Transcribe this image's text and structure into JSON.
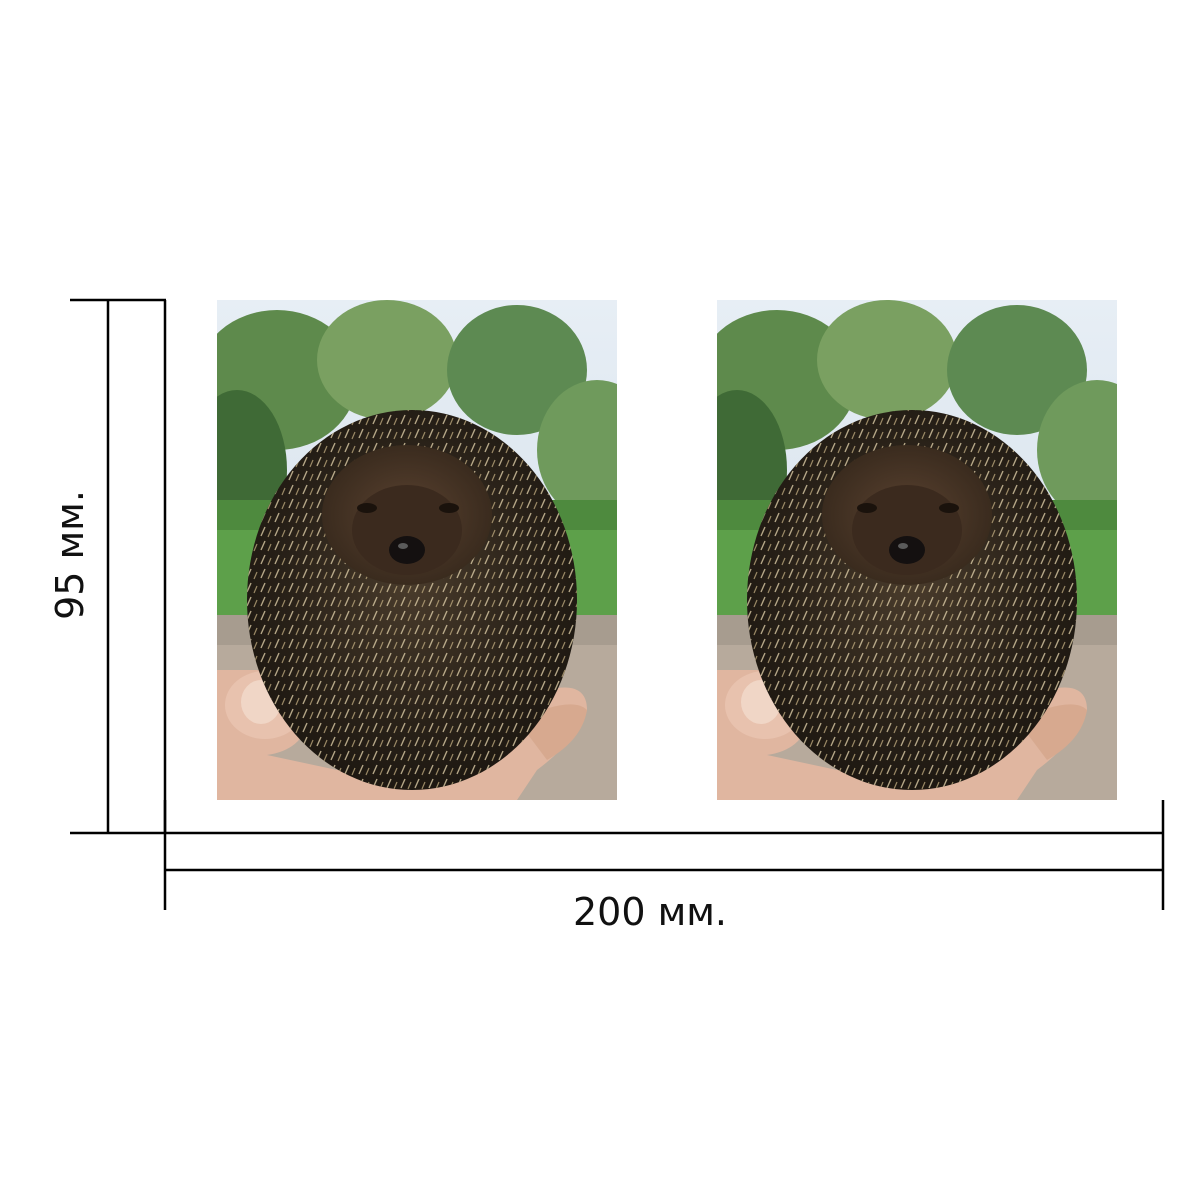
{
  "dimensions": {
    "width_label": "200 мм.",
    "height_label": "95 мм."
  },
  "photos": [
    {
      "subject": "hedgehog-in-hand"
    },
    {
      "subject": "hedgehog-in-hand"
    }
  ],
  "colors": {
    "line": "#000000",
    "background": "#ffffff"
  }
}
